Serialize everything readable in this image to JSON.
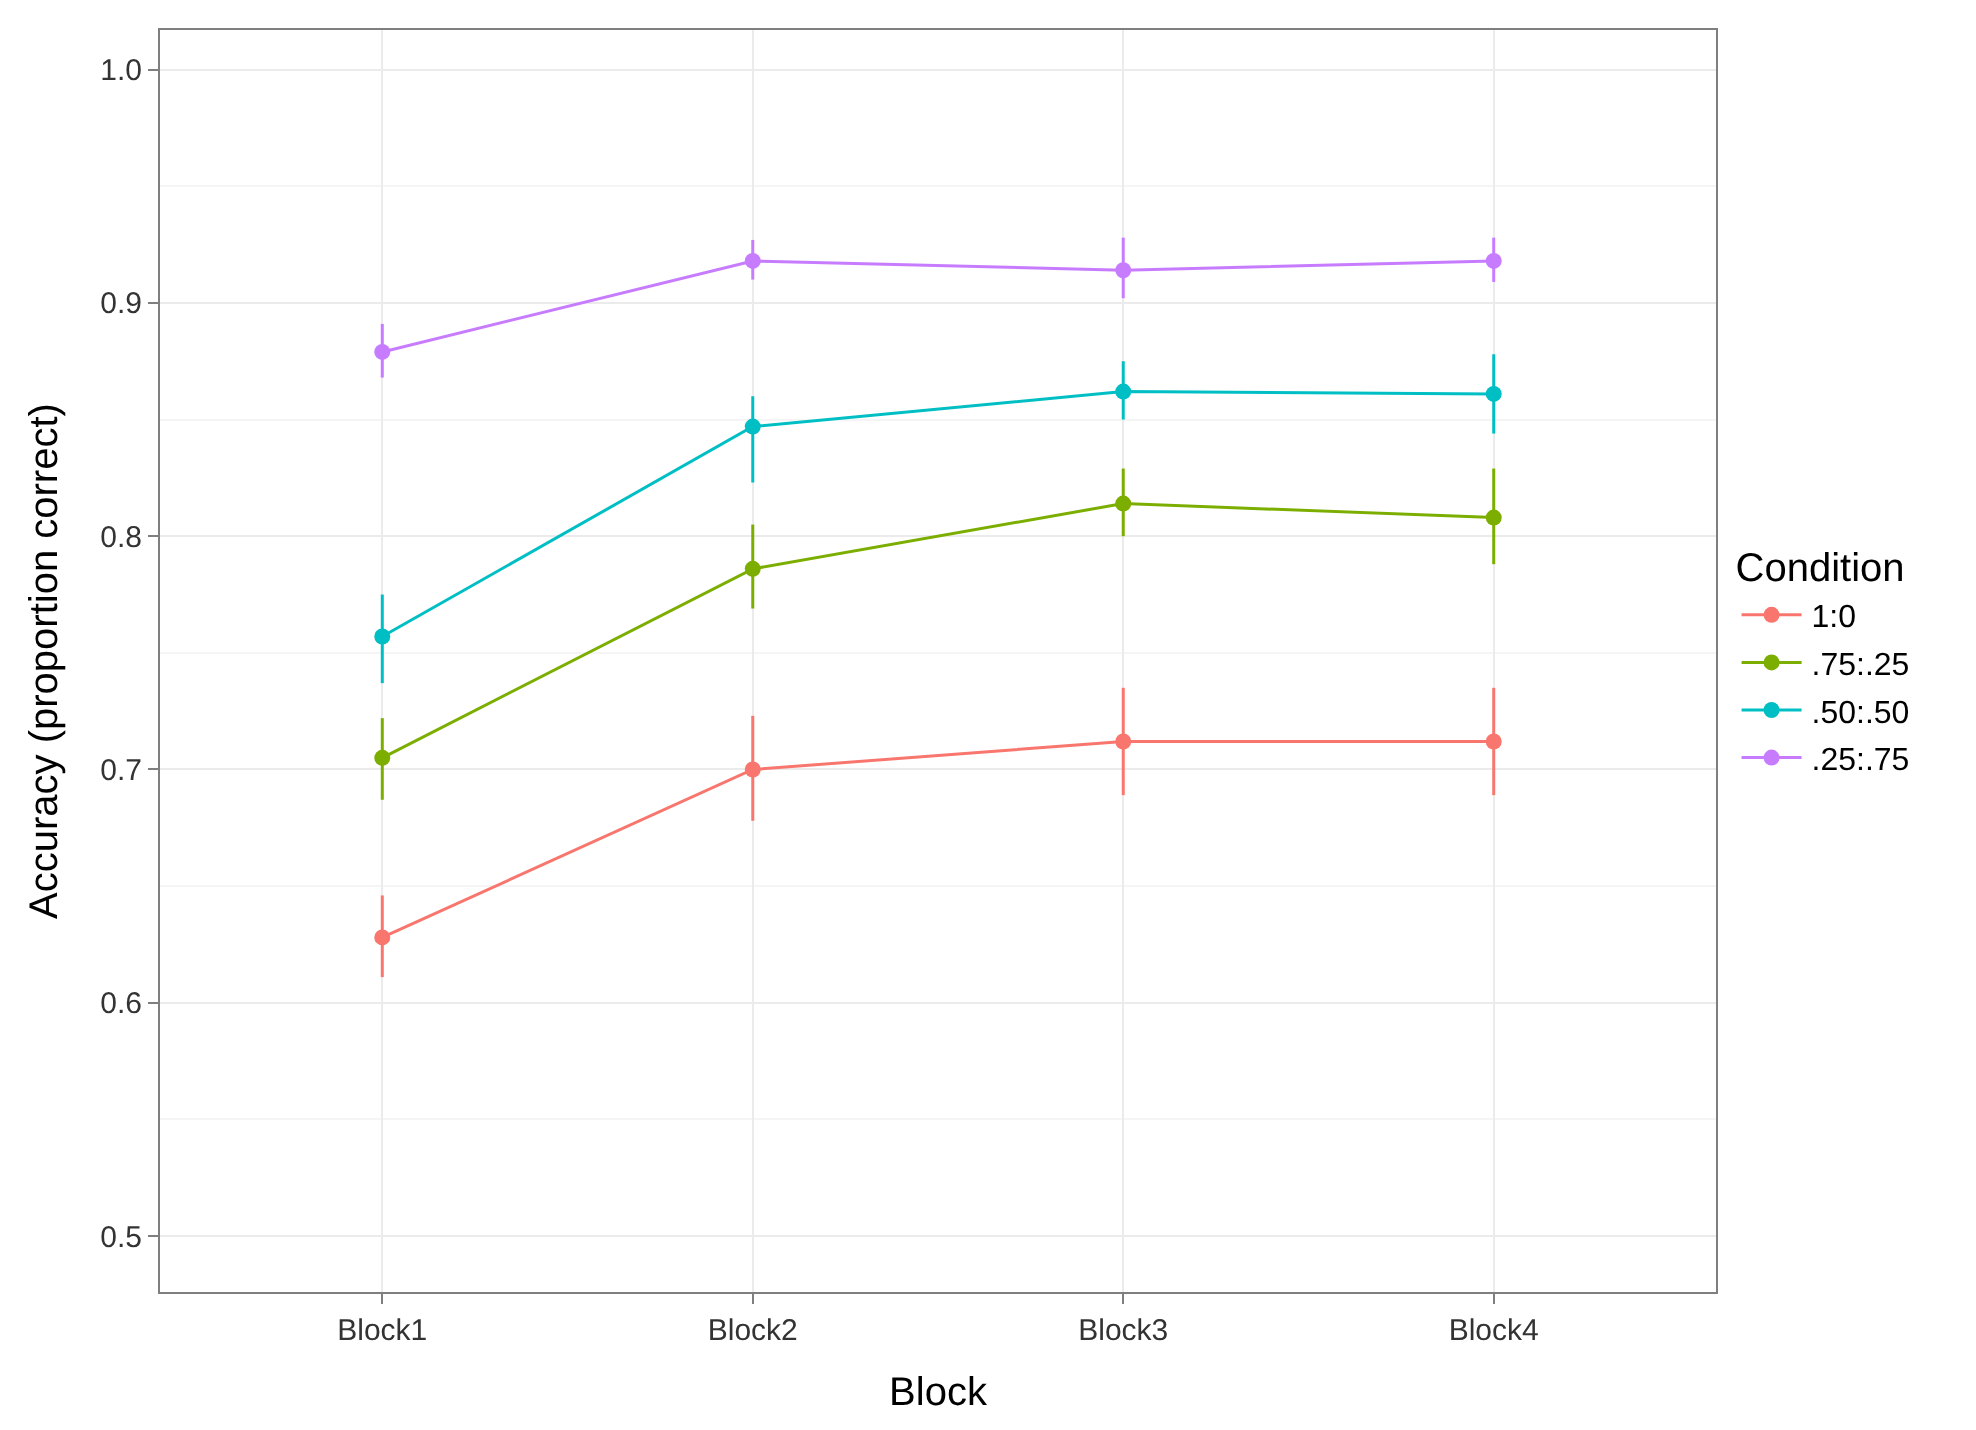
{
  "chart_data": {
    "type": "line",
    "xlabel": "Block",
    "ylabel": "Accuracy (proportion correct)",
    "legend_title": "Condition",
    "categories": [
      "Block1",
      "Block2",
      "Block3",
      "Block4"
    ],
    "series": [
      {
        "name": "1:0",
        "color": "#f8766d",
        "values": [
          0.628,
          0.7,
          0.712,
          0.712
        ],
        "errors": [
          [
            0.611,
            0.646
          ],
          [
            0.678,
            0.723
          ],
          [
            0.689,
            0.735
          ],
          [
            0.689,
            0.735
          ]
        ]
      },
      {
        "name": ".75:.25",
        "color": "#7cae00",
        "values": [
          0.705,
          0.786,
          0.814,
          0.808
        ],
        "errors": [
          [
            0.687,
            0.722
          ],
          [
            0.769,
            0.805
          ],
          [
            0.8,
            0.829
          ],
          [
            0.788,
            0.829
          ]
        ]
      },
      {
        "name": ".50:.50",
        "color": "#00bfc4",
        "values": [
          0.757,
          0.847,
          0.862,
          0.861
        ],
        "errors": [
          [
            0.737,
            0.775
          ],
          [
            0.823,
            0.86
          ],
          [
            0.85,
            0.875
          ],
          [
            0.844,
            0.878
          ]
        ]
      },
      {
        "name": ".25:.75",
        "color": "#c77cff",
        "values": [
          0.879,
          0.918,
          0.914,
          0.918
        ],
        "errors": [
          [
            0.868,
            0.891
          ],
          [
            0.91,
            0.927
          ],
          [
            0.902,
            0.928
          ],
          [
            0.909,
            0.928
          ]
        ]
      }
    ],
    "ylim": [
      0.476,
      1.017
    ],
    "yticks": [
      0.5,
      {
        "value": 0.6,
        "label": "0.6"
      },
      {
        "value": 0.7,
        "label": "0.7"
      },
      {
        "value": 0.8,
        "label": "0.8"
      },
      {
        "value": 0.9,
        "label": "0.9"
      },
      {
        "value": 1.0,
        "label": "1.0"
      }
    ],
    "grid": true,
    "legend": "right",
    "marker": "circle",
    "line_style": "solid"
  }
}
